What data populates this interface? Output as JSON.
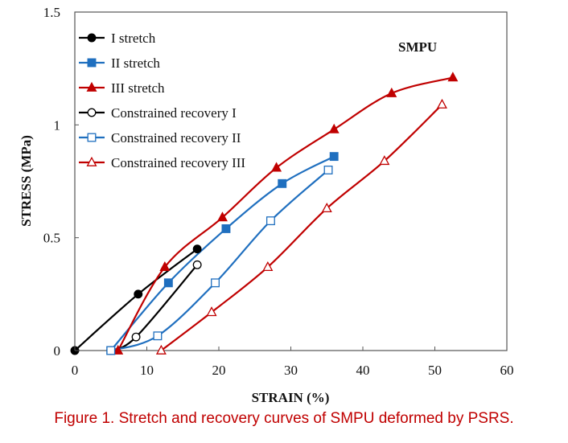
{
  "caption": "Figure 1. Stretch and recovery curves of SMPU deformed by PSRS.",
  "chart_data": {
    "type": "line",
    "title": "",
    "annotation": "SMPU",
    "xlabel": "STRAIN (%)",
    "ylabel": "STRESS (MPa)",
    "xlim": [
      0,
      60
    ],
    "ylim": [
      0,
      1.5
    ],
    "xticks": [
      0,
      10,
      20,
      30,
      40,
      50,
      60
    ],
    "yticks": [
      0,
      0.5,
      1,
      1.5
    ],
    "xtick_labels": [
      "0",
      "10",
      "20",
      "30",
      "40",
      "50",
      "60"
    ],
    "ytick_labels": [
      "0",
      "0.5",
      "1",
      "1.5"
    ],
    "grid": false,
    "legend_position": "top-left",
    "series": [
      {
        "name": "I stretch",
        "color": "#000000",
        "marker": "circle",
        "filled": true,
        "points": [
          [
            0,
            0
          ],
          [
            8.8,
            0.25
          ],
          [
            17,
            0.45
          ]
        ]
      },
      {
        "name": "II stretch",
        "color": "#1f6fbf",
        "marker": "square",
        "filled": true,
        "points": [
          [
            5,
            0
          ],
          [
            13,
            0.3
          ],
          [
            21,
            0.54
          ],
          [
            28.8,
            0.74
          ],
          [
            36,
            0.86
          ]
        ]
      },
      {
        "name": "III stretch",
        "color": "#c00000",
        "marker": "triangle",
        "filled": true,
        "points": [
          [
            6,
            0
          ],
          [
            12.5,
            0.37
          ],
          [
            20.5,
            0.59
          ],
          [
            28,
            0.81
          ],
          [
            36,
            0.98
          ],
          [
            44,
            1.14
          ],
          [
            52.5,
            1.21
          ]
        ]
      },
      {
        "name": "Constrained recovery I",
        "color": "#000000",
        "marker": "circle",
        "filled": false,
        "points": [
          [
            5,
            0
          ],
          [
            8.5,
            0.06
          ],
          [
            17,
            0.38
          ]
        ]
      },
      {
        "name": "Constrained recovery II",
        "color": "#1f6fbf",
        "marker": "square",
        "filled": false,
        "points": [
          [
            5,
            0
          ],
          [
            11.5,
            0.065
          ],
          [
            19.5,
            0.3
          ],
          [
            27.2,
            0.575
          ],
          [
            35.2,
            0.8
          ]
        ]
      },
      {
        "name": "Constrained recovery III",
        "color": "#c00000",
        "marker": "triangle",
        "filled": false,
        "points": [
          [
            12,
            0
          ],
          [
            19,
            0.17
          ],
          [
            26.8,
            0.37
          ],
          [
            35,
            0.63
          ],
          [
            43,
            0.84
          ],
          [
            51,
            1.09
          ]
        ]
      }
    ]
  }
}
